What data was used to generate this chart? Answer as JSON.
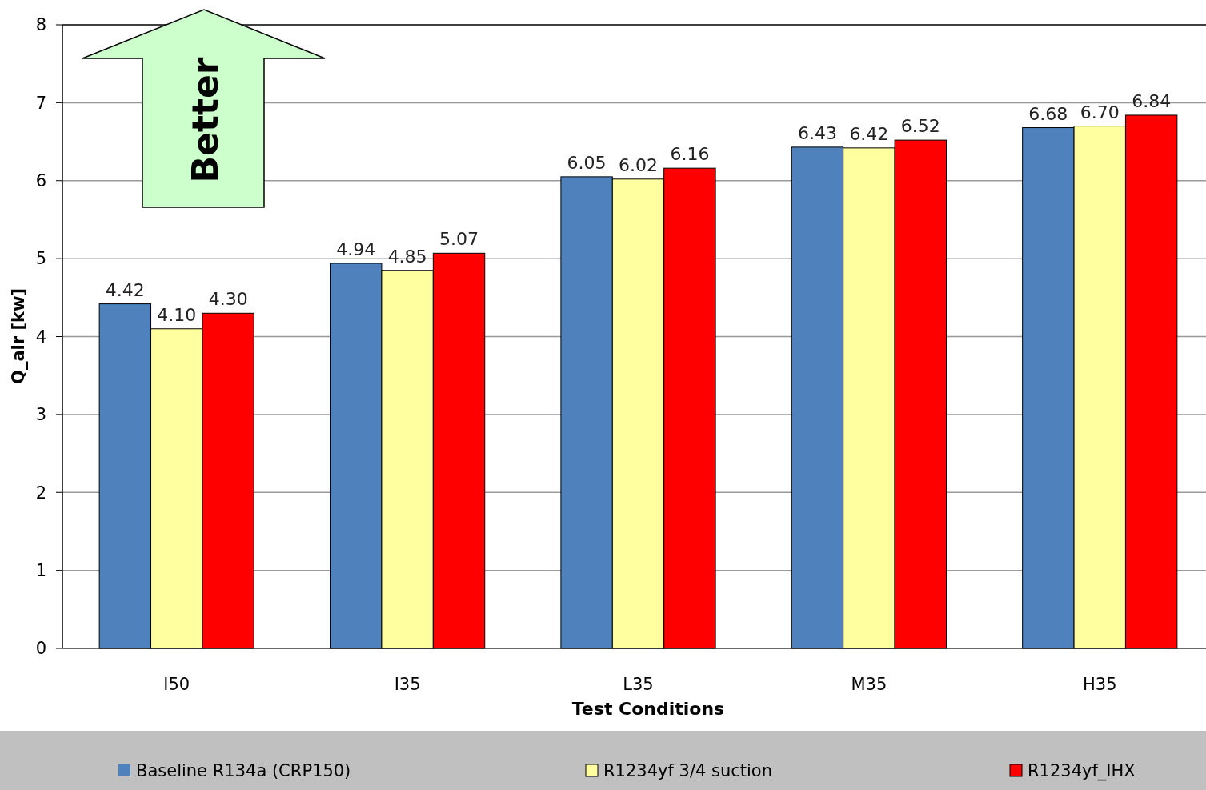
{
  "chart_data": {
    "type": "bar",
    "xlabel": "Test Conditions",
    "ylabel": "Q_air [kw]",
    "categories": [
      "I50",
      "I35",
      "L35",
      "M35",
      "H35"
    ],
    "series": [
      {
        "name": "Baseline R134a (CRP150)",
        "color": "#4f81bd",
        "values": [
          4.42,
          4.94,
          6.05,
          6.43,
          6.68
        ],
        "value_labels": [
          "4.42",
          "4.94",
          "6.05",
          "6.43",
          "6.68"
        ]
      },
      {
        "name": "R1234yf 3/4 suction",
        "color": "#ffffa0",
        "values": [
          4.1,
          4.85,
          6.02,
          6.42,
          6.7
        ],
        "value_labels": [
          "4.10",
          "4.85",
          "6.02",
          "6.42",
          "6.70"
        ]
      },
      {
        "name": "R1234yf_IHX",
        "color": "#ff0000",
        "values": [
          4.3,
          5.07,
          6.16,
          6.52,
          6.84
        ],
        "value_labels": [
          "4.30",
          "5.07",
          "6.16",
          "6.52",
          "6.84"
        ]
      }
    ],
    "ylim": [
      0,
      8
    ],
    "yticks": [
      0,
      1,
      2,
      3,
      4,
      5,
      6,
      7,
      8
    ],
    "grid": "y",
    "legend": "bottom",
    "annotations": [
      "Better"
    ]
  }
}
